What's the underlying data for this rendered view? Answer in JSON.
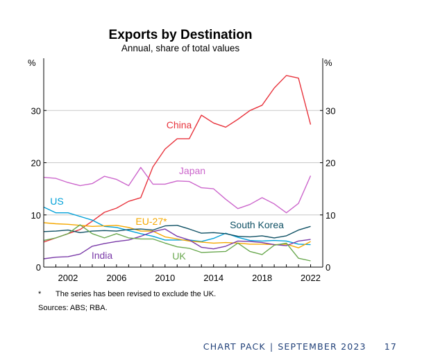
{
  "chart_data": {
    "type": "line",
    "title": "Exports by Destination",
    "subtitle": "Annual, share of total values",
    "y_unit_left": "%",
    "y_unit_right": "%",
    "ylim": [
      0,
      40
    ],
    "y_ticks": [
      0,
      10,
      20,
      30
    ],
    "xlim": [
      2000,
      2023
    ],
    "x_ticks": [
      2002,
      2006,
      2010,
      2014,
      2018,
      2022
    ],
    "grid": true,
    "x": [
      2000,
      2001,
      2002,
      2003,
      2004,
      2005,
      2006,
      2007,
      2008,
      2009,
      2010,
      2011,
      2012,
      2013,
      2014,
      2015,
      2016,
      2017,
      2018,
      2019,
      2020,
      2021,
      2022
    ],
    "series": [
      {
        "name": "China",
        "color": "#e8333c",
        "values": [
          4.8,
          5.6,
          6.4,
          7.2,
          8.8,
          10.5,
          11.3,
          12.6,
          13.3,
          19.2,
          22.6,
          24.6,
          24.6,
          29.1,
          27.6,
          26.8,
          28.3,
          30.0,
          31.0,
          34.3,
          36.7,
          36.2,
          27.3
        ]
      },
      {
        "name": "Japan",
        "color": "#cc66cc",
        "values": [
          17.2,
          17.0,
          16.2,
          15.6,
          16.0,
          17.4,
          16.8,
          15.6,
          19.1,
          15.9,
          15.9,
          16.5,
          16.4,
          15.2,
          15.0,
          13.0,
          11.2,
          12.0,
          13.3,
          12.1,
          10.4,
          12.2,
          17.5
        ]
      },
      {
        "name": "US",
        "color": "#00a0d8",
        "values": [
          11.5,
          10.4,
          10.4,
          9.7,
          9.0,
          7.8,
          7.6,
          7.0,
          6.4,
          5.9,
          5.2,
          5.2,
          5.2,
          4.9,
          5.5,
          6.5,
          5.7,
          5.1,
          5.0,
          5.1,
          5.0,
          4.4,
          4.3
        ]
      },
      {
        "name": "EU-27*",
        "color": "#f5a800",
        "values": [
          8.5,
          8.3,
          8.2,
          8.0,
          7.8,
          7.9,
          8.0,
          7.6,
          6.9,
          6.9,
          5.8,
          5.4,
          5.0,
          4.8,
          4.6,
          4.7,
          4.6,
          4.4,
          4.4,
          4.3,
          4.4,
          3.7,
          4.9
        ]
      },
      {
        "name": "South Korea",
        "color": "#0d4f63",
        "values": [
          6.8,
          6.9,
          7.1,
          6.6,
          6.9,
          7.0,
          6.9,
          7.2,
          7.3,
          7.1,
          7.9,
          8.0,
          7.3,
          6.5,
          6.6,
          6.4,
          5.9,
          5.8,
          6.0,
          5.6,
          6.0,
          7.1,
          7.8
        ]
      },
      {
        "name": "India",
        "color": "#7a3aa8",
        "values": [
          1.6,
          1.9,
          2.0,
          2.5,
          4.0,
          4.5,
          4.9,
          5.2,
          5.9,
          6.8,
          7.3,
          5.9,
          5.2,
          3.8,
          3.5,
          4.0,
          5.0,
          4.9,
          4.7,
          4.3,
          4.1,
          5.0,
          5.3
        ]
      },
      {
        "name": "UK",
        "color": "#6aa84f",
        "values": [
          5.1,
          5.6,
          6.4,
          8.1,
          6.4,
          5.6,
          6.4,
          5.6,
          5.4,
          5.4,
          4.6,
          3.9,
          3.6,
          2.8,
          2.9,
          3.0,
          4.6,
          3.0,
          2.4,
          4.2,
          4.6,
          1.7,
          1.2
        ]
      }
    ],
    "series_label_positions": [
      "upper",
      "upper",
      "left",
      "mid",
      "right",
      "lower",
      "lower"
    ]
  },
  "notes": {
    "footnote_marker": "*",
    "footnote_text": "The series has been revised to exclude the UK.",
    "sources": "Sources: ABS; RBA."
  },
  "footer": {
    "publication": "CHART PACK",
    "separator": "|",
    "date": "SEPTEMBER 2023",
    "page_number": "17"
  }
}
